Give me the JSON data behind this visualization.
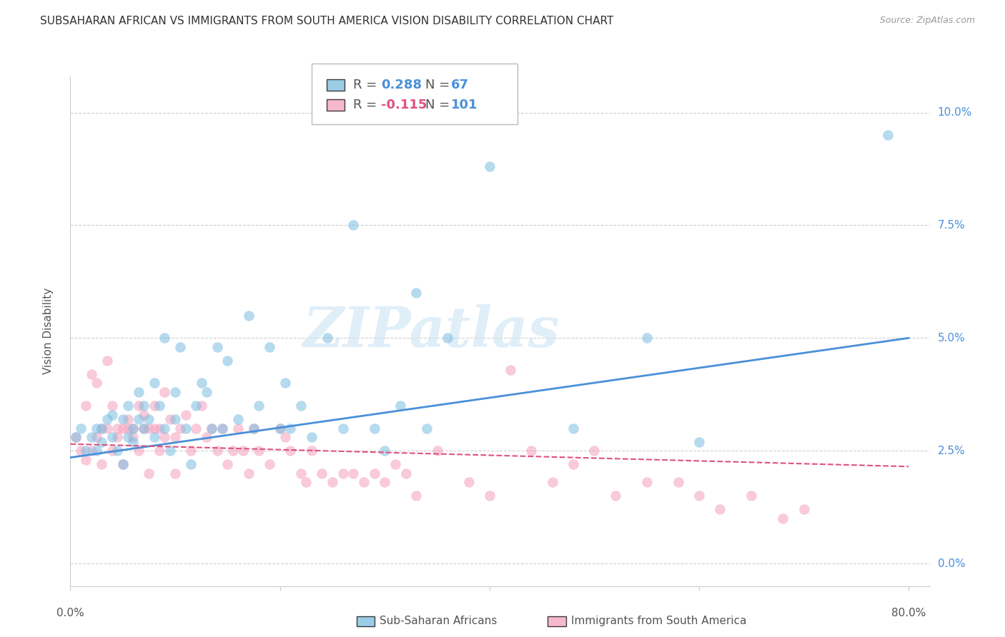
{
  "title": "SUBSAHARAN AFRICAN VS IMMIGRANTS FROM SOUTH AMERICA VISION DISABILITY CORRELATION CHART",
  "source": "Source: ZipAtlas.com",
  "ylabel": "Vision Disability",
  "ytick_values": [
    0.0,
    0.025,
    0.05,
    0.075,
    0.1
  ],
  "ytick_labels": [
    "0.0%",
    "2.5%",
    "5.0%",
    "7.5%",
    "10.0%"
  ],
  "xlim": [
    0.0,
    0.82
  ],
  "ylim": [
    -0.005,
    0.108
  ],
  "color_blue": "#7bbde0",
  "color_pink": "#f4a0bc",
  "color_line_blue": "#4a90d9",
  "color_line_pink": "#e05080",
  "watermark_text": "ZIPatlas",
  "blue_scatter_x": [
    0.005,
    0.01,
    0.015,
    0.02,
    0.025,
    0.025,
    0.03,
    0.03,
    0.035,
    0.04,
    0.04,
    0.045,
    0.05,
    0.05,
    0.055,
    0.055,
    0.06,
    0.06,
    0.065,
    0.065,
    0.07,
    0.07,
    0.075,
    0.08,
    0.08,
    0.085,
    0.09,
    0.09,
    0.095,
    0.1,
    0.1,
    0.105,
    0.11,
    0.115,
    0.12,
    0.125,
    0.13,
    0.135,
    0.14,
    0.145,
    0.15,
    0.16,
    0.17,
    0.175,
    0.18,
    0.19,
    0.2,
    0.205,
    0.21,
    0.22,
    0.23,
    0.245,
    0.26,
    0.27,
    0.29,
    0.3,
    0.315,
    0.33,
    0.34,
    0.36,
    0.4,
    0.48,
    0.55,
    0.6,
    0.78
  ],
  "blue_scatter_y": [
    0.028,
    0.03,
    0.025,
    0.028,
    0.03,
    0.025,
    0.027,
    0.03,
    0.032,
    0.028,
    0.033,
    0.025,
    0.022,
    0.032,
    0.028,
    0.035,
    0.03,
    0.027,
    0.032,
    0.038,
    0.03,
    0.035,
    0.032,
    0.028,
    0.04,
    0.035,
    0.03,
    0.05,
    0.025,
    0.038,
    0.032,
    0.048,
    0.03,
    0.022,
    0.035,
    0.04,
    0.038,
    0.03,
    0.048,
    0.03,
    0.045,
    0.032,
    0.055,
    0.03,
    0.035,
    0.048,
    0.03,
    0.04,
    0.03,
    0.035,
    0.028,
    0.05,
    0.03,
    0.075,
    0.03,
    0.025,
    0.035,
    0.06,
    0.03,
    0.05,
    0.088,
    0.03,
    0.05,
    0.027,
    0.095
  ],
  "pink_scatter_x": [
    0.005,
    0.01,
    0.015,
    0.015,
    0.02,
    0.02,
    0.025,
    0.025,
    0.03,
    0.03,
    0.035,
    0.035,
    0.04,
    0.04,
    0.045,
    0.045,
    0.05,
    0.05,
    0.055,
    0.055,
    0.06,
    0.06,
    0.065,
    0.065,
    0.07,
    0.07,
    0.075,
    0.075,
    0.08,
    0.08,
    0.085,
    0.085,
    0.09,
    0.09,
    0.095,
    0.1,
    0.1,
    0.105,
    0.11,
    0.115,
    0.12,
    0.125,
    0.13,
    0.135,
    0.14,
    0.145,
    0.15,
    0.155,
    0.16,
    0.165,
    0.17,
    0.175,
    0.18,
    0.19,
    0.2,
    0.205,
    0.21,
    0.22,
    0.225,
    0.23,
    0.24,
    0.25,
    0.26,
    0.27,
    0.28,
    0.29,
    0.3,
    0.31,
    0.32,
    0.33,
    0.35,
    0.38,
    0.4,
    0.42,
    0.44,
    0.46,
    0.48,
    0.5,
    0.52,
    0.55,
    0.58,
    0.6,
    0.62,
    0.65,
    0.68,
    0.7
  ],
  "pink_scatter_y": [
    0.028,
    0.025,
    0.023,
    0.035,
    0.025,
    0.042,
    0.028,
    0.04,
    0.022,
    0.03,
    0.03,
    0.045,
    0.025,
    0.035,
    0.028,
    0.03,
    0.03,
    0.022,
    0.032,
    0.03,
    0.028,
    0.03,
    0.025,
    0.035,
    0.03,
    0.033,
    0.03,
    0.02,
    0.03,
    0.035,
    0.025,
    0.03,
    0.028,
    0.038,
    0.032,
    0.028,
    0.02,
    0.03,
    0.033,
    0.025,
    0.03,
    0.035,
    0.028,
    0.03,
    0.025,
    0.03,
    0.022,
    0.025,
    0.03,
    0.025,
    0.02,
    0.03,
    0.025,
    0.022,
    0.03,
    0.028,
    0.025,
    0.02,
    0.018,
    0.025,
    0.02,
    0.018,
    0.02,
    0.02,
    0.018,
    0.02,
    0.018,
    0.022,
    0.02,
    0.015,
    0.025,
    0.018,
    0.015,
    0.043,
    0.025,
    0.018,
    0.022,
    0.025,
    0.015,
    0.018,
    0.018,
    0.015,
    0.012,
    0.015,
    0.01,
    0.012
  ],
  "blue_trend_x": [
    0.0,
    0.8
  ],
  "blue_trend_y": [
    0.0235,
    0.05
  ],
  "pink_trend_x": [
    0.0,
    0.8
  ],
  "pink_trend_y": [
    0.0265,
    0.0215
  ],
  "grid_color": "#d0d0d0",
  "background_color": "#ffffff",
  "title_fontsize": 11,
  "source_fontsize": 9,
  "axis_label_fontsize": 11,
  "tick_fontsize": 11,
  "legend_fontsize": 13
}
